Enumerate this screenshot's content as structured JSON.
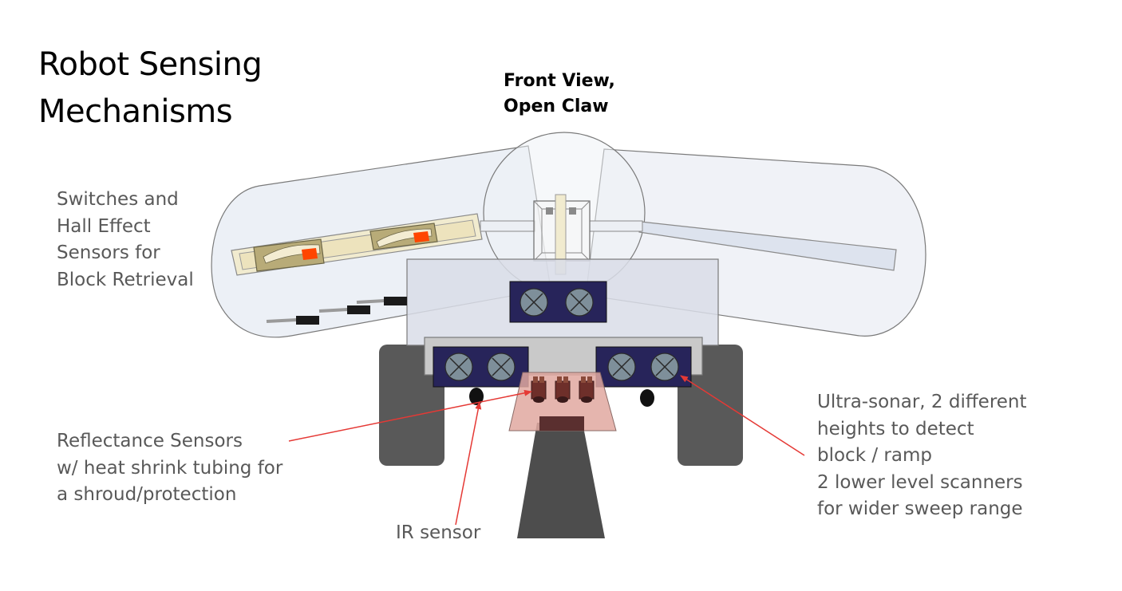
{
  "title": {
    "line1": "Robot Sensing",
    "line2": "Mechanisms"
  },
  "subtitle": {
    "line1": "Front View,",
    "line2": "Open Claw"
  },
  "labels": {
    "switches": [
      "Switches and",
      "Hall Effect",
      "Sensors for",
      "Block Retrieval"
    ],
    "reflectance": [
      "Reflectance Sensors",
      "w/ heat shrink tubing for",
      "a shroud/protection"
    ],
    "ir": "IR sensor",
    "ultrasonic": [
      "Ultra-sonar, 2 different",
      "heights to detect",
      "block / ramp",
      "2 lower level scanners",
      "for wider sweep range"
    ]
  },
  "colors": {
    "annotation_arrow": "#e53935",
    "sonar_housing": "#27245a",
    "tire": "#595959",
    "chassis": "#d9dde8",
    "reflectance_mount": "#e0a8a0",
    "switch_highlight": "#ff4500"
  }
}
